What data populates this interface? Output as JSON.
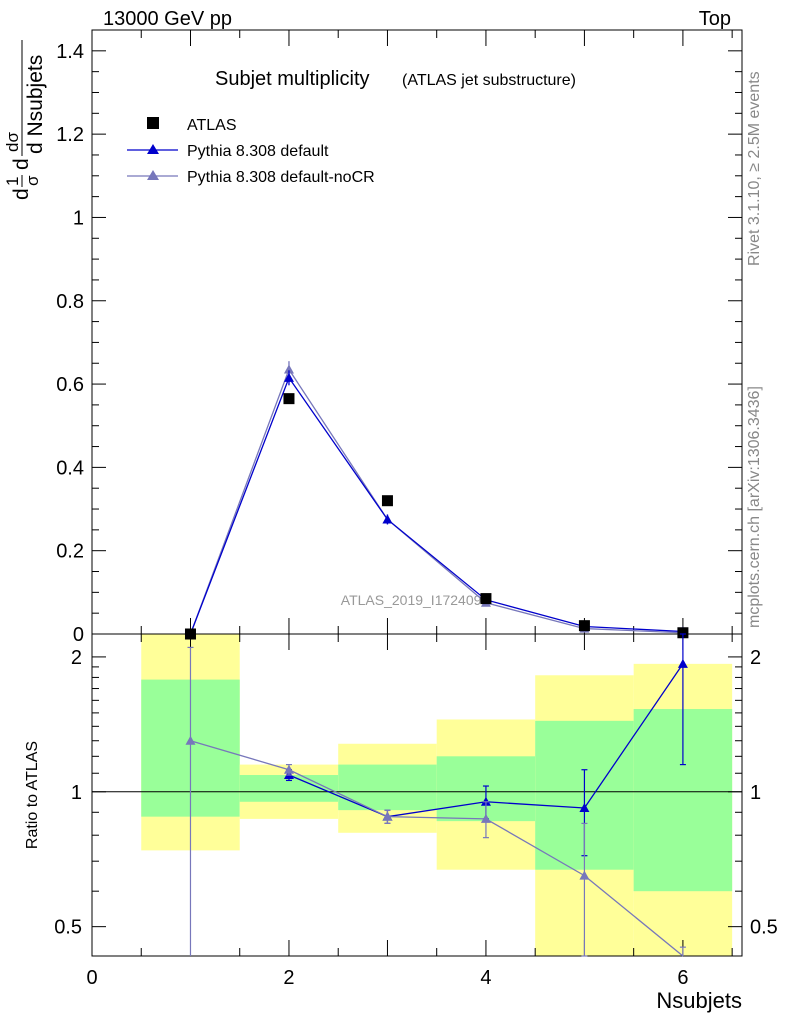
{
  "header": {
    "left": "13000 GeV pp",
    "right": "Top"
  },
  "side_labels": {
    "rivet": "Rivet 3.1.10, ≥ 2.5M events",
    "mcplots": "mcplots.cern.ch [arXiv:1306.3436]"
  },
  "colors": {
    "atlas": "#000000",
    "pythia_default": "#0000cc",
    "pythia_nocr": "#7777bb",
    "band_green": "#99ff99",
    "band_yellow": "#ffff99"
  },
  "chart_data": [
    {
      "type": "line",
      "panel": "main",
      "title": "Subjet multiplicity",
      "subtitle": "(ATLAS jet substructure)",
      "ylabel_frac": "1/σ",
      "ylabel_den": "dσ/d Nsubjets",
      "watermark": "ATLAS_2019_I1724098",
      "xlim": [
        0,
        6.6
      ],
      "ylim": [
        0,
        1.45
      ],
      "yticks": [
        0,
        0.2,
        0.4,
        0.6,
        0.8,
        1,
        1.2,
        1.4
      ],
      "ytick_labels": [
        "0",
        "0.2",
        "0.4",
        "0.6",
        "0.8",
        "1",
        "1.2",
        "1.4"
      ],
      "legend_position": "top-left",
      "x": [
        1,
        2,
        3,
        4,
        5,
        6
      ],
      "series": [
        {
          "name": "ATLAS",
          "marker": "square",
          "values": [
            0.0,
            0.565,
            0.32,
            0.085,
            0.02,
            0.003
          ]
        },
        {
          "name": "Pythia 8.308 default",
          "marker": "triangle",
          "values": [
            0.0,
            0.615,
            0.275,
            0.082,
            0.018,
            0.006
          ],
          "err": [
            0,
            0.018,
            0.012,
            0.006,
            0.004,
            0.002
          ]
        },
        {
          "name": "Pythia 8.308 default-noCR",
          "marker": "triangle",
          "values": [
            0.0,
            0.635,
            0.275,
            0.075,
            0.013,
            0.003
          ],
          "err": [
            0,
            0.02,
            0.012,
            0.006,
            0.004,
            0.002
          ]
        }
      ]
    },
    {
      "type": "line",
      "panel": "ratio",
      "ylabel": "Ratio to ATLAS",
      "xlabel": "Nsubjets",
      "xlim": [
        0,
        6.6
      ],
      "ylim": [
        0.43,
        2.25
      ],
      "ylog": true,
      "xticks": [
        0,
        2,
        4,
        6
      ],
      "xtick_labels": [
        "0",
        "2",
        "4",
        "6"
      ],
      "yticks": [
        0.5,
        1,
        2
      ],
      "ytick_labels": [
        "0.5",
        "1",
        "2"
      ],
      "bands": [
        {
          "xlo": 0.5,
          "xhi": 1.5,
          "green": [
            0.88,
            1.78
          ],
          "yellow": [
            0.74,
            2.3
          ]
        },
        {
          "xlo": 1.5,
          "xhi": 2.5,
          "green": [
            0.95,
            1.09
          ],
          "yellow": [
            0.87,
            1.15
          ]
        },
        {
          "xlo": 2.5,
          "xhi": 3.5,
          "green": [
            0.91,
            1.15
          ],
          "yellow": [
            0.81,
            1.28
          ]
        },
        {
          "xlo": 3.5,
          "xhi": 4.5,
          "green": [
            0.86,
            1.2
          ],
          "yellow": [
            0.67,
            1.45
          ]
        },
        {
          "xlo": 4.5,
          "xhi": 5.5,
          "green": [
            0.67,
            1.44
          ],
          "yellow": [
            0.43,
            1.82
          ]
        },
        {
          "xlo": 5.5,
          "xhi": 6.5,
          "green": [
            0.6,
            1.53
          ],
          "yellow": [
            0.43,
            1.93
          ]
        }
      ],
      "x": [
        1,
        2,
        3,
        4,
        5,
        6
      ],
      "series": [
        {
          "name": "Pythia 8.308 default",
          "values": [
            null,
            1.09,
            0.88,
            0.95,
            0.92,
            1.93
          ],
          "err_lo": [
            null,
            0.03,
            0.03,
            0.08,
            0.2,
            0.78
          ],
          "err_hi": [
            null,
            0.03,
            0.03,
            0.08,
            0.2,
            0.5
          ]
        },
        {
          "name": "Pythia 8.308 default-noCR",
          "values": [
            1.3,
            1.12,
            0.88,
            0.87,
            0.65,
            0.35
          ],
          "err_lo": [
            0.9,
            0.03,
            0.03,
            0.08,
            0.22,
            0.1
          ],
          "err_hi": [
            0.8,
            0.03,
            0.03,
            0.08,
            0.2,
            0.1
          ]
        }
      ]
    }
  ]
}
